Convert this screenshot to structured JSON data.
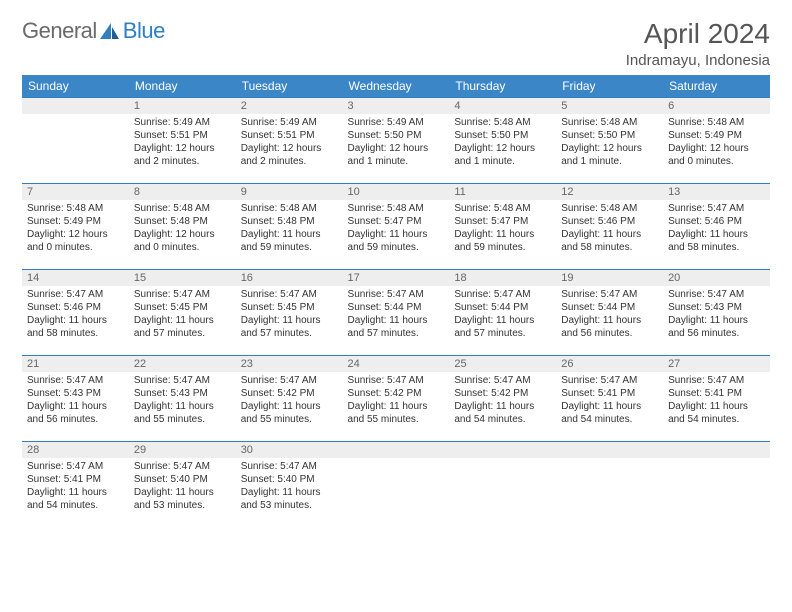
{
  "logo": {
    "text1": "General",
    "text2": "Blue"
  },
  "title": "April 2024",
  "location": "Indramayu, Indonesia",
  "colors": {
    "header_bg": "#3b86c7",
    "header_text": "#ffffff",
    "row_divider": "#2f7fc2",
    "daynum_bg": "#eeeeee",
    "daynum_text": "#666666",
    "body_text": "#333333",
    "title_text": "#555555",
    "logo_grey": "#6a6a6a",
    "logo_blue": "#2f7fc2",
    "page_bg": "#ffffff"
  },
  "weekdays": [
    "Sunday",
    "Monday",
    "Tuesday",
    "Wednesday",
    "Thursday",
    "Friday",
    "Saturday"
  ],
  "grid": [
    [
      {
        "n": "",
        "sr": "",
        "ss": "",
        "dl": ""
      },
      {
        "n": "1",
        "sr": "Sunrise: 5:49 AM",
        "ss": "Sunset: 5:51 PM",
        "dl": "Daylight: 12 hours and 2 minutes."
      },
      {
        "n": "2",
        "sr": "Sunrise: 5:49 AM",
        "ss": "Sunset: 5:51 PM",
        "dl": "Daylight: 12 hours and 2 minutes."
      },
      {
        "n": "3",
        "sr": "Sunrise: 5:49 AM",
        "ss": "Sunset: 5:50 PM",
        "dl": "Daylight: 12 hours and 1 minute."
      },
      {
        "n": "4",
        "sr": "Sunrise: 5:48 AM",
        "ss": "Sunset: 5:50 PM",
        "dl": "Daylight: 12 hours and 1 minute."
      },
      {
        "n": "5",
        "sr": "Sunrise: 5:48 AM",
        "ss": "Sunset: 5:50 PM",
        "dl": "Daylight: 12 hours and 1 minute."
      },
      {
        "n": "6",
        "sr": "Sunrise: 5:48 AM",
        "ss": "Sunset: 5:49 PM",
        "dl": "Daylight: 12 hours and 0 minutes."
      }
    ],
    [
      {
        "n": "7",
        "sr": "Sunrise: 5:48 AM",
        "ss": "Sunset: 5:49 PM",
        "dl": "Daylight: 12 hours and 0 minutes."
      },
      {
        "n": "8",
        "sr": "Sunrise: 5:48 AM",
        "ss": "Sunset: 5:48 PM",
        "dl": "Daylight: 12 hours and 0 minutes."
      },
      {
        "n": "9",
        "sr": "Sunrise: 5:48 AM",
        "ss": "Sunset: 5:48 PM",
        "dl": "Daylight: 11 hours and 59 minutes."
      },
      {
        "n": "10",
        "sr": "Sunrise: 5:48 AM",
        "ss": "Sunset: 5:47 PM",
        "dl": "Daylight: 11 hours and 59 minutes."
      },
      {
        "n": "11",
        "sr": "Sunrise: 5:48 AM",
        "ss": "Sunset: 5:47 PM",
        "dl": "Daylight: 11 hours and 59 minutes."
      },
      {
        "n": "12",
        "sr": "Sunrise: 5:48 AM",
        "ss": "Sunset: 5:46 PM",
        "dl": "Daylight: 11 hours and 58 minutes."
      },
      {
        "n": "13",
        "sr": "Sunrise: 5:47 AM",
        "ss": "Sunset: 5:46 PM",
        "dl": "Daylight: 11 hours and 58 minutes."
      }
    ],
    [
      {
        "n": "14",
        "sr": "Sunrise: 5:47 AM",
        "ss": "Sunset: 5:46 PM",
        "dl": "Daylight: 11 hours and 58 minutes."
      },
      {
        "n": "15",
        "sr": "Sunrise: 5:47 AM",
        "ss": "Sunset: 5:45 PM",
        "dl": "Daylight: 11 hours and 57 minutes."
      },
      {
        "n": "16",
        "sr": "Sunrise: 5:47 AM",
        "ss": "Sunset: 5:45 PM",
        "dl": "Daylight: 11 hours and 57 minutes."
      },
      {
        "n": "17",
        "sr": "Sunrise: 5:47 AM",
        "ss": "Sunset: 5:44 PM",
        "dl": "Daylight: 11 hours and 57 minutes."
      },
      {
        "n": "18",
        "sr": "Sunrise: 5:47 AM",
        "ss": "Sunset: 5:44 PM",
        "dl": "Daylight: 11 hours and 57 minutes."
      },
      {
        "n": "19",
        "sr": "Sunrise: 5:47 AM",
        "ss": "Sunset: 5:44 PM",
        "dl": "Daylight: 11 hours and 56 minutes."
      },
      {
        "n": "20",
        "sr": "Sunrise: 5:47 AM",
        "ss": "Sunset: 5:43 PM",
        "dl": "Daylight: 11 hours and 56 minutes."
      }
    ],
    [
      {
        "n": "21",
        "sr": "Sunrise: 5:47 AM",
        "ss": "Sunset: 5:43 PM",
        "dl": "Daylight: 11 hours and 56 minutes."
      },
      {
        "n": "22",
        "sr": "Sunrise: 5:47 AM",
        "ss": "Sunset: 5:43 PM",
        "dl": "Daylight: 11 hours and 55 minutes."
      },
      {
        "n": "23",
        "sr": "Sunrise: 5:47 AM",
        "ss": "Sunset: 5:42 PM",
        "dl": "Daylight: 11 hours and 55 minutes."
      },
      {
        "n": "24",
        "sr": "Sunrise: 5:47 AM",
        "ss": "Sunset: 5:42 PM",
        "dl": "Daylight: 11 hours and 55 minutes."
      },
      {
        "n": "25",
        "sr": "Sunrise: 5:47 AM",
        "ss": "Sunset: 5:42 PM",
        "dl": "Daylight: 11 hours and 54 minutes."
      },
      {
        "n": "26",
        "sr": "Sunrise: 5:47 AM",
        "ss": "Sunset: 5:41 PM",
        "dl": "Daylight: 11 hours and 54 minutes."
      },
      {
        "n": "27",
        "sr": "Sunrise: 5:47 AM",
        "ss": "Sunset: 5:41 PM",
        "dl": "Daylight: 11 hours and 54 minutes."
      }
    ],
    [
      {
        "n": "28",
        "sr": "Sunrise: 5:47 AM",
        "ss": "Sunset: 5:41 PM",
        "dl": "Daylight: 11 hours and 54 minutes."
      },
      {
        "n": "29",
        "sr": "Sunrise: 5:47 AM",
        "ss": "Sunset: 5:40 PM",
        "dl": "Daylight: 11 hours and 53 minutes."
      },
      {
        "n": "30",
        "sr": "Sunrise: 5:47 AM",
        "ss": "Sunset: 5:40 PM",
        "dl": "Daylight: 11 hours and 53 minutes."
      },
      {
        "n": "",
        "sr": "",
        "ss": "",
        "dl": ""
      },
      {
        "n": "",
        "sr": "",
        "ss": "",
        "dl": ""
      },
      {
        "n": "",
        "sr": "",
        "ss": "",
        "dl": ""
      },
      {
        "n": "",
        "sr": "",
        "ss": "",
        "dl": ""
      }
    ]
  ]
}
